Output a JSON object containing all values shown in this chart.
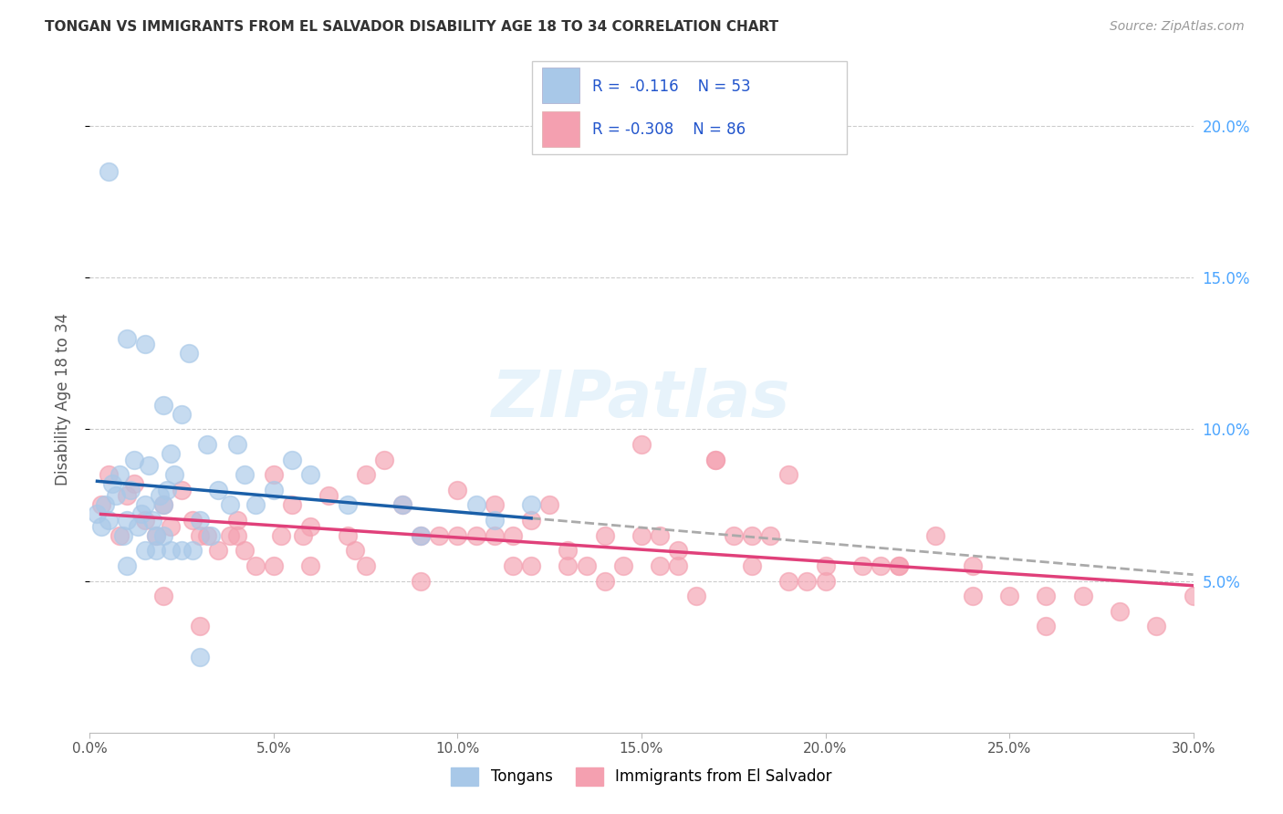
{
  "title": "TONGAN VS IMMIGRANTS FROM EL SALVADOR DISABILITY AGE 18 TO 34 CORRELATION CHART",
  "source": "Source: ZipAtlas.com",
  "ylabel": "Disability Age 18 to 34",
  "legend_label1": "Tongans",
  "legend_label2": "Immigrants from El Salvador",
  "color_blue": "#a8c8e8",
  "color_pink": "#f4a0b0",
  "color_line_blue": "#1a5fa8",
  "color_line_pink": "#e0407a",
  "color_dashed": "#aaaaaa",
  "color_axis_right": "#4da6ff",
  "color_title": "#333333",
  "color_source": "#999999",
  "background_color": "#ffffff",
  "grid_color": "#cccccc",
  "xlim": [
    0,
    30
  ],
  "ylim": [
    0,
    22
  ],
  "x_ticks": [
    0,
    5,
    10,
    15,
    20,
    25,
    30
  ],
  "y_ticks": [
    5,
    10,
    15,
    20
  ],
  "tongans_x": [
    0.2,
    0.3,
    0.4,
    0.5,
    0.6,
    0.7,
    0.8,
    0.9,
    1.0,
    1.1,
    1.2,
    1.3,
    1.4,
    1.5,
    1.6,
    1.7,
    1.8,
    1.9,
    2.0,
    2.1,
    2.2,
    2.3,
    2.5,
    2.7,
    3.0,
    3.2,
    3.5,
    3.8,
    4.0,
    4.2,
    4.5,
    5.0,
    5.5,
    6.0,
    7.0,
    8.5,
    9.0,
    10.5,
    11.0,
    12.0,
    1.0,
    1.5,
    2.0,
    2.8,
    3.3,
    1.8,
    2.2,
    0.5,
    1.0,
    1.5,
    2.0,
    2.5,
    3.0
  ],
  "tongans_y": [
    7.2,
    6.8,
    7.5,
    7.0,
    8.2,
    7.8,
    8.5,
    6.5,
    7.0,
    8.0,
    9.0,
    6.8,
    7.2,
    7.5,
    8.8,
    7.0,
    6.5,
    7.8,
    7.5,
    8.0,
    9.2,
    8.5,
    10.5,
    12.5,
    7.0,
    9.5,
    8.0,
    7.5,
    9.5,
    8.5,
    7.5,
    8.0,
    9.0,
    8.5,
    7.5,
    7.5,
    6.5,
    7.5,
    7.0,
    7.5,
    13.0,
    12.8,
    10.8,
    6.0,
    6.5,
    6.0,
    6.0,
    18.5,
    5.5,
    6.0,
    6.5,
    6.0,
    2.5
  ],
  "salvador_x": [
    0.3,
    0.5,
    0.8,
    1.0,
    1.2,
    1.5,
    1.8,
    2.0,
    2.2,
    2.5,
    2.8,
    3.0,
    3.2,
    3.5,
    3.8,
    4.0,
    4.2,
    4.5,
    5.0,
    5.2,
    5.5,
    5.8,
    6.0,
    6.5,
    7.0,
    7.2,
    7.5,
    8.0,
    8.5,
    9.0,
    9.5,
    10.0,
    10.5,
    11.0,
    11.5,
    12.0,
    12.5,
    13.0,
    13.5,
    14.0,
    14.5,
    15.0,
    15.5,
    16.0,
    16.5,
    17.0,
    17.5,
    18.0,
    18.5,
    19.0,
    19.5,
    20.0,
    21.0,
    21.5,
    22.0,
    23.0,
    24.0,
    25.0,
    26.0,
    27.0,
    28.0,
    29.0,
    30.0,
    2.0,
    3.0,
    4.0,
    5.0,
    6.0,
    7.5,
    9.0,
    10.0,
    11.0,
    12.0,
    14.0,
    16.0,
    18.0,
    20.0,
    22.0,
    24.0,
    26.0,
    15.0,
    17.0,
    19.0,
    11.5,
    13.0,
    15.5
  ],
  "salvador_y": [
    7.5,
    8.5,
    6.5,
    7.8,
    8.2,
    7.0,
    6.5,
    7.5,
    6.8,
    8.0,
    7.0,
    6.5,
    6.5,
    6.0,
    6.5,
    7.0,
    6.0,
    5.5,
    8.5,
    6.5,
    7.5,
    6.5,
    6.8,
    7.8,
    6.5,
    6.0,
    8.5,
    9.0,
    7.5,
    6.5,
    6.5,
    8.0,
    6.5,
    7.5,
    6.5,
    7.0,
    7.5,
    6.0,
    5.5,
    6.5,
    5.5,
    6.5,
    5.5,
    6.0,
    4.5,
    9.0,
    6.5,
    5.5,
    6.5,
    5.0,
    5.0,
    5.5,
    5.5,
    5.5,
    5.5,
    6.5,
    5.5,
    4.5,
    4.5,
    4.5,
    4.0,
    3.5,
    4.5,
    4.5,
    3.5,
    6.5,
    5.5,
    5.5,
    5.5,
    5.0,
    6.5,
    6.5,
    5.5,
    5.0,
    5.5,
    6.5,
    5.0,
    5.5,
    4.5,
    3.5,
    9.5,
    9.0,
    8.5,
    5.5,
    5.5,
    6.5
  ]
}
